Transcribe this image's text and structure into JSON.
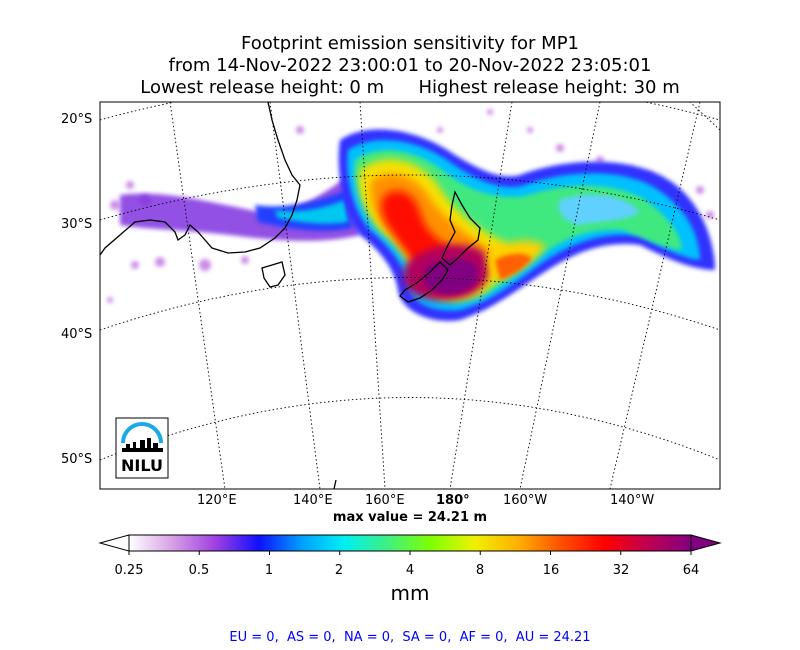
{
  "title": {
    "line1": "Footprint emission sensitivity for MP1",
    "line2": "from 14-Nov-2022 23:00:01 to 20-Nov-2022 23:05:01",
    "line3": "Lowest release height: 0 m      Highest release height: 30 m"
  },
  "map": {
    "lat_labels": [
      "20°S",
      "30°S",
      "40°S",
      "50°S"
    ],
    "lon_labels": [
      "120°E",
      "140°E",
      "160°E",
      "180°",
      "160°W",
      "140°W"
    ],
    "max_value_text": "max value = 24.21 m",
    "logo_text": "NILU"
  },
  "colorbar": {
    "labels": [
      "0.25",
      "0.5",
      "1",
      "2",
      "4",
      "8",
      "16",
      "32",
      "64"
    ],
    "unit": "mm",
    "colors": [
      "#ffffff",
      "#d7a0e6",
      "#a040e0",
      "#1010ff",
      "#00a0ff",
      "#00f0f0",
      "#40f080",
      "#80ff00",
      "#f0f000",
      "#ffb000",
      "#ff5000",
      "#ff0000",
      "#c00050",
      "#800080"
    ]
  },
  "regions_text": "EU = 0,  AS = 0,  NA = 0,  SA = 0,  AF = 0,  AU = 24.21",
  "colors": {
    "regions_text": "#0000ff"
  }
}
